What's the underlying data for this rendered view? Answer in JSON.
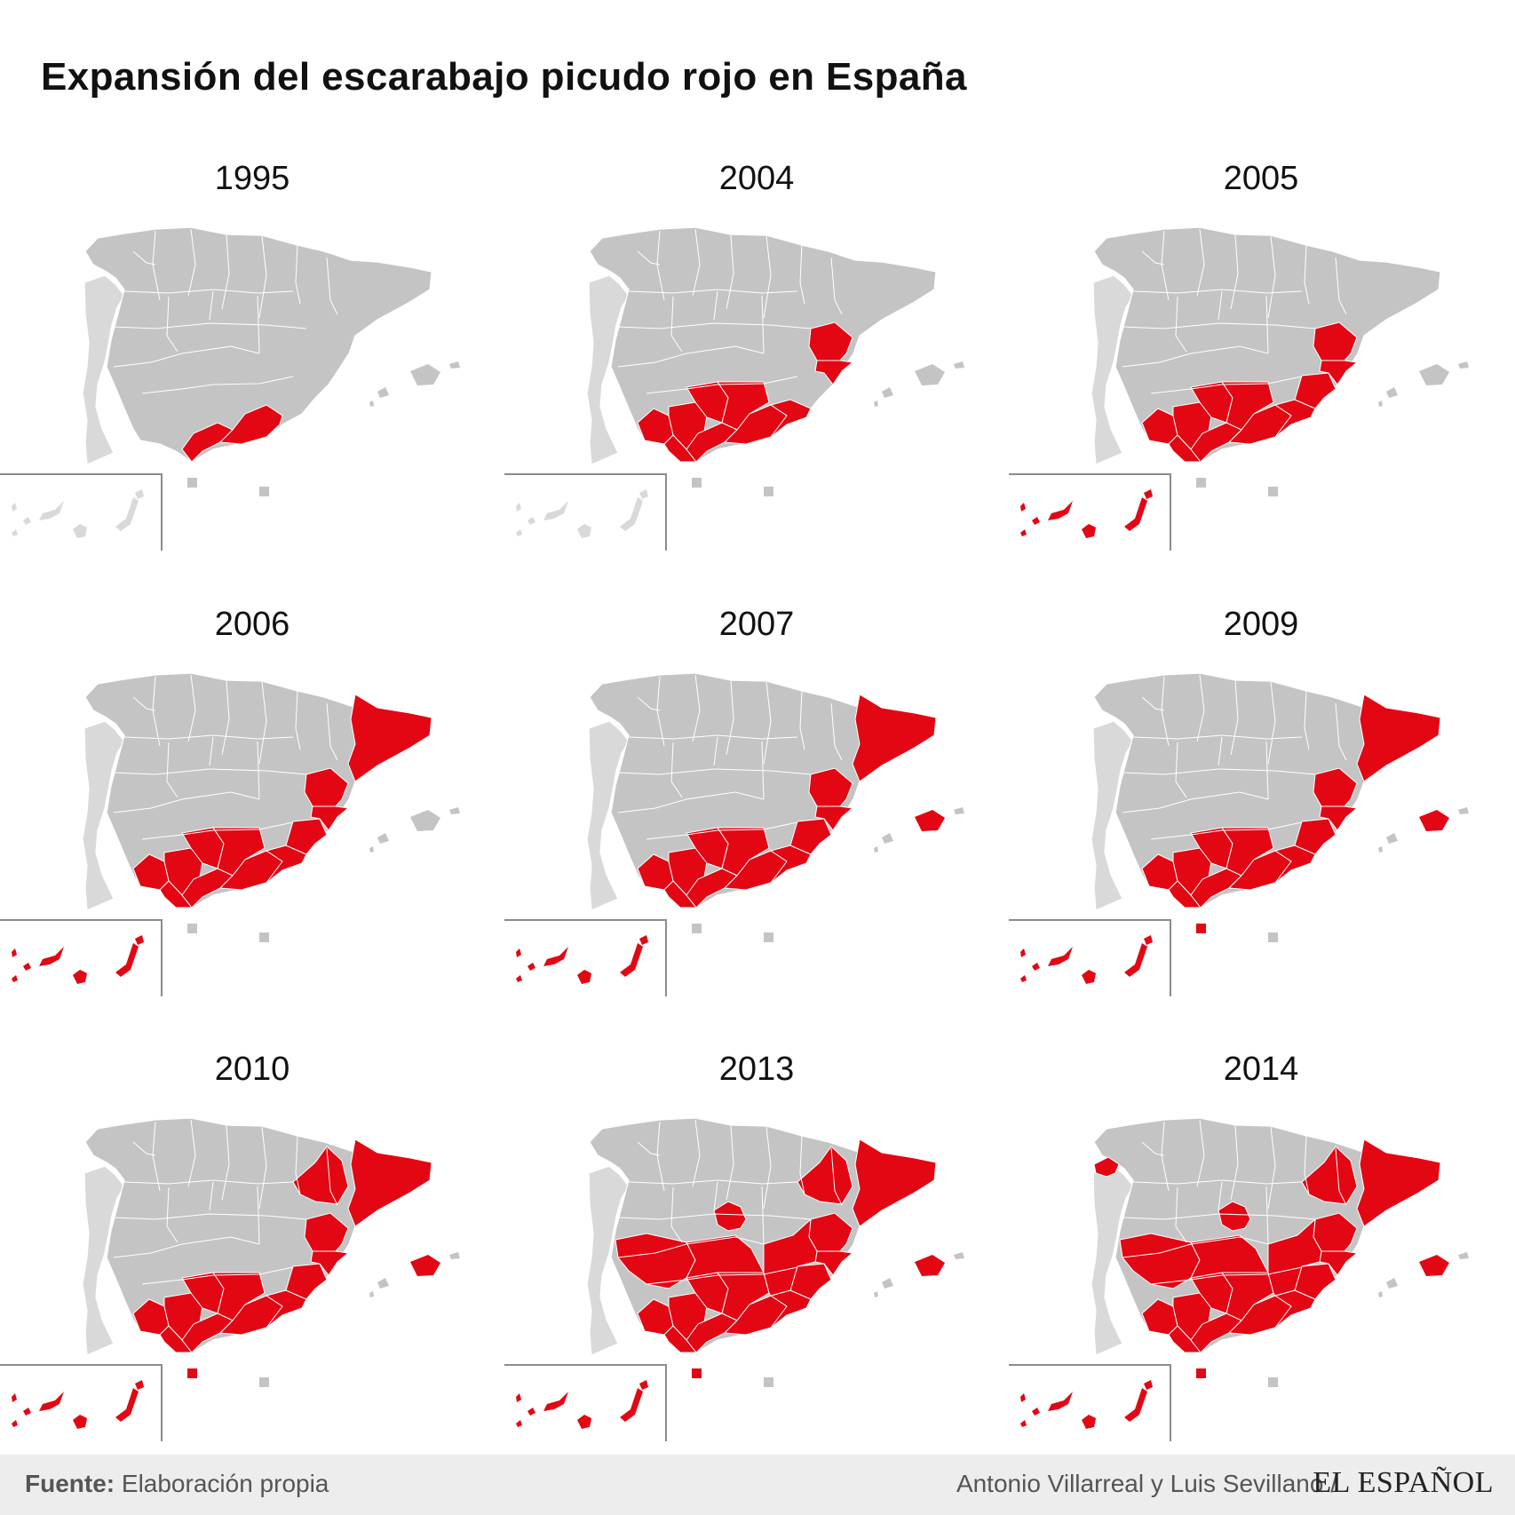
{
  "title": "Expansión del escarabajo picudo rojo en España",
  "colors": {
    "affected": "#e30613",
    "unaffected": "#c4c4c4",
    "portugal": "#d9d9d9",
    "border": "#ffffff"
  },
  "panels": [
    {
      "year": "1995",
      "affected": [
        "Málaga",
        "Granada"
      ]
    },
    {
      "year": "2004",
      "affected": [
        "Huelva",
        "Sevilla",
        "Cádiz",
        "Córdoba",
        "Jaén",
        "Málaga",
        "Granada",
        "Almería",
        "Valencia",
        "Alicante"
      ]
    },
    {
      "year": "2005",
      "affected": [
        "Huelva",
        "Sevilla",
        "Cádiz",
        "Córdoba",
        "Jaén",
        "Málaga",
        "Granada",
        "Almería",
        "Murcia",
        "Valencia",
        "Alicante",
        "Canarias"
      ]
    },
    {
      "year": "2006",
      "affected": [
        "Huelva",
        "Sevilla",
        "Cádiz",
        "Córdoba",
        "Jaén",
        "Málaga",
        "Granada",
        "Almería",
        "Murcia",
        "Valencia",
        "Alicante",
        "Cataluña",
        "Canarias"
      ]
    },
    {
      "year": "2007",
      "affected": [
        "Huelva",
        "Sevilla",
        "Cádiz",
        "Córdoba",
        "Jaén",
        "Málaga",
        "Granada",
        "Almería",
        "Murcia",
        "Valencia",
        "Alicante",
        "Cataluña",
        "Baleares",
        "Canarias"
      ]
    },
    {
      "year": "2009",
      "affected": [
        "Huelva",
        "Sevilla",
        "Cádiz",
        "Córdoba",
        "Jaén",
        "Málaga",
        "Granada",
        "Almería",
        "Murcia",
        "Valencia",
        "Alicante",
        "Cataluña",
        "Baleares",
        "Canarias",
        "Ceuta"
      ]
    },
    {
      "year": "2010",
      "affected": [
        "Huelva",
        "Sevilla",
        "Cádiz",
        "Córdoba",
        "Jaén",
        "Málaga",
        "Granada",
        "Almería",
        "Murcia",
        "Valencia",
        "Alicante",
        "Cataluña",
        "Zaragoza",
        "Baleares",
        "Canarias",
        "Ceuta"
      ]
    },
    {
      "year": "2013",
      "affected": [
        "Huelva",
        "Sevilla",
        "Cádiz",
        "Córdoba",
        "Jaén",
        "Málaga",
        "Granada",
        "Almería",
        "Murcia",
        "Valencia",
        "Alicante",
        "Cataluña",
        "Zaragoza",
        "Badajoz",
        "Ciudad Real",
        "Albacete",
        "Madrid",
        "Baleares",
        "Canarias",
        "Ceuta"
      ]
    },
    {
      "year": "2014",
      "affected": [
        "Huelva",
        "Sevilla",
        "Cádiz",
        "Córdoba",
        "Jaén",
        "Málaga",
        "Granada",
        "Almería",
        "Murcia",
        "Valencia",
        "Alicante",
        "Cataluña",
        "Zaragoza",
        "Badajoz",
        "Ciudad Real",
        "Albacete",
        "Madrid",
        "Pontevedra",
        "Baleares",
        "Canarias",
        "Ceuta"
      ]
    }
  ],
  "footer": {
    "source_label": "Fuente:",
    "source_text": "Elaboración propia",
    "credit": "Antonio Villarreal y Luis Sevillano /",
    "logo": "EL ESPAÑOL"
  }
}
